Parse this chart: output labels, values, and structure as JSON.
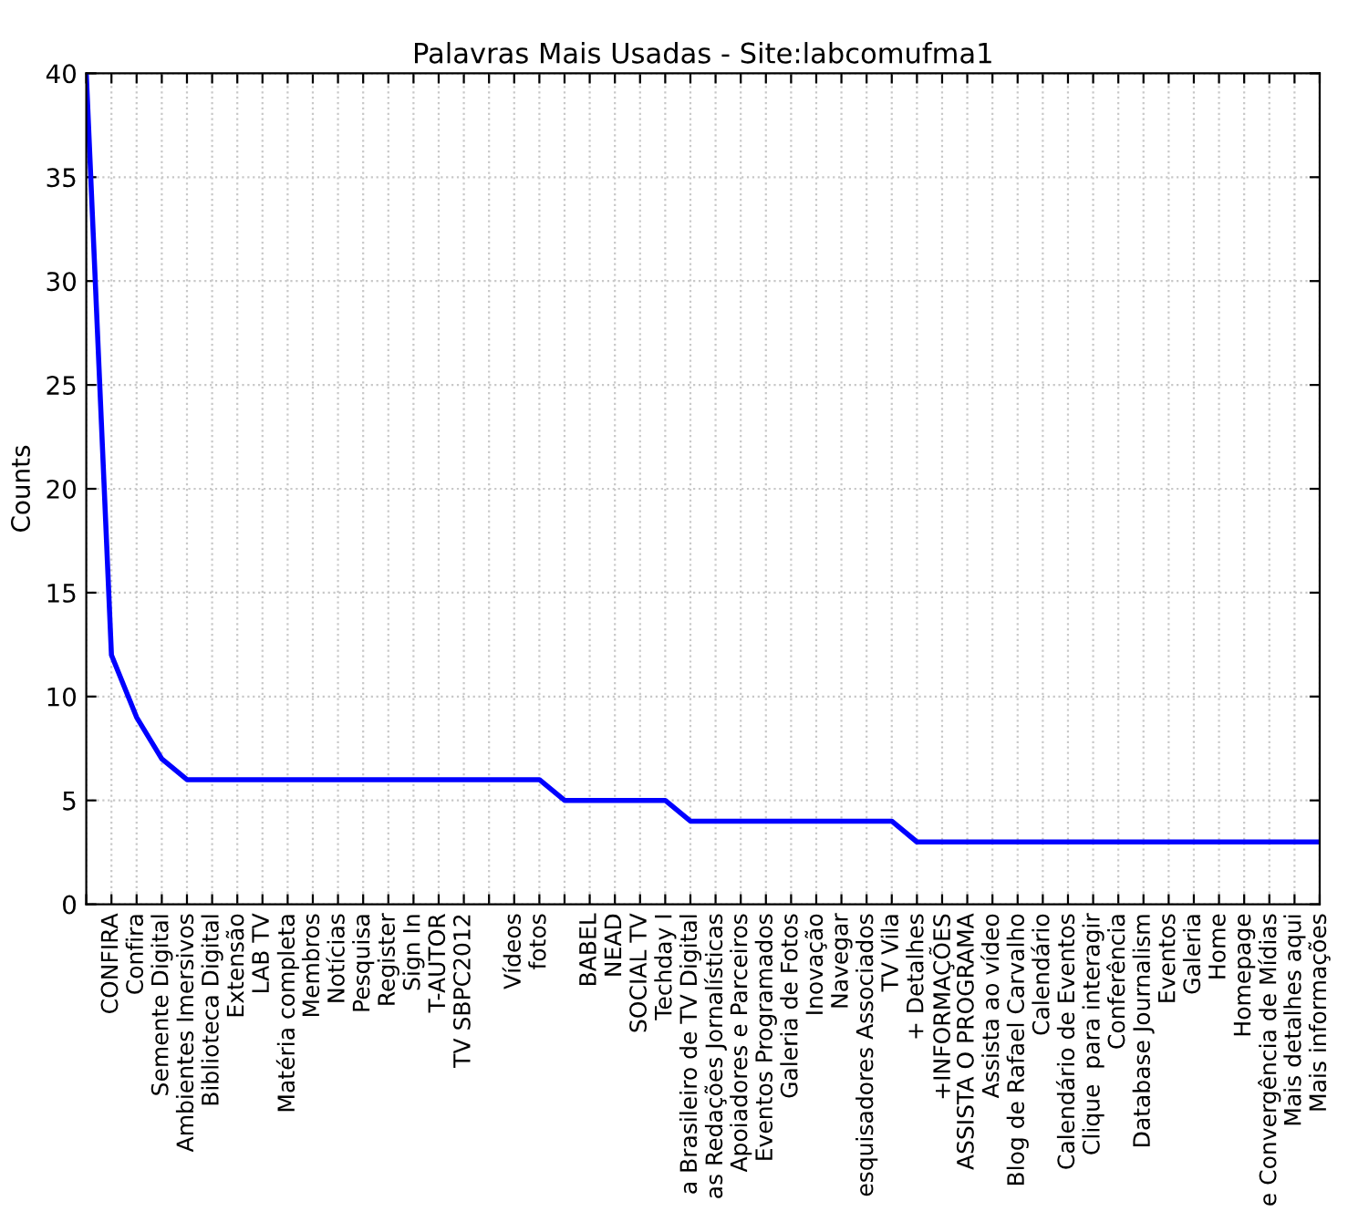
{
  "chart_data": {
    "type": "line",
    "title": "Palavras Mais Usadas - Site:labcomufma1",
    "ylabel": "Counts",
    "categories": [
      null,
      "CONFIRA",
      "Confira",
      "Semente Digital",
      "Ambientes Imersivos",
      "Biblioteca Digital",
      "Extensão",
      "LAB TV",
      "Matéria completa",
      "Membros",
      "Notícias",
      "Pesquisa",
      "Register",
      "Sign In",
      "T-AUTOR",
      "TV SBPC2012",
      null,
      "Vídeos",
      "fotos",
      null,
      "BABEL",
      "NEAD",
      "SOCIAL TV",
      "Techday I",
      "a Brasileiro de TV Digital",
      "as Redações Jornalísticas",
      "Apoiadores e Parceiros",
      "Eventos Programados",
      "Galeria de Fotos",
      "Inovação",
      "Navegar",
      "esquisadores Associados",
      "TV Vila",
      "+ Detalhes",
      "+INFORMAÇÕES",
      "ASSISTA O PROGRAMA",
      "Assista ao vídeo",
      "Blog de Rafael Carvalho",
      "Calendário",
      "Calendário de Eventos",
      "Clique  para interagir",
      "Conferência",
      "Database Journalism",
      "Eventos",
      "Galeria",
      "Home",
      "Homepage",
      "e Convergência de Mídias",
      "Mais detalhes aqui",
      "Mais informações"
    ],
    "series": [
      {
        "color": "#0000ff",
        "values": [
          40,
          12,
          9,
          7,
          6,
          6,
          6,
          6,
          6,
          6,
          6,
          6,
          6,
          6,
          6,
          6,
          6,
          6,
          6,
          5,
          5,
          5,
          5,
          5,
          4,
          4,
          4,
          4,
          4,
          4,
          4,
          4,
          4,
          3,
          3,
          3,
          3,
          3,
          3,
          3,
          3,
          3,
          3,
          3,
          3,
          3,
          3,
          3,
          3,
          3
        ]
      }
    ],
    "ylim": [
      0,
      40
    ],
    "yticks": [
      0,
      5,
      10,
      15,
      20,
      25,
      30,
      35,
      40
    ],
    "grid": true,
    "marker": "none",
    "line_style": "solid"
  }
}
